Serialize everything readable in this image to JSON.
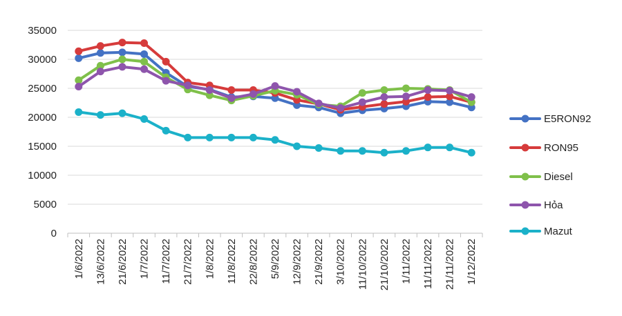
{
  "chart_data": {
    "type": "line",
    "title": "",
    "xlabel": "",
    "ylabel": "",
    "ylim": [
      0,
      35000
    ],
    "yticks": [
      0,
      5000,
      10000,
      15000,
      20000,
      25000,
      30000,
      35000
    ],
    "ytick_labels": [
      "0",
      "5000",
      "10000",
      "15000",
      "20000",
      "25000",
      "30000",
      "35000"
    ],
    "grid": "horizontal",
    "legend_position": "right",
    "categories": [
      "1/6/2022",
      "13/6/2022",
      "21/6/2022",
      "1/7/2022",
      "11/7/2022",
      "21/7/2022",
      "1/8/2022",
      "11/8/2022",
      "22/8/2022",
      "5/9/2022",
      "12/9/2022",
      "21/9/2022",
      "3/10/2022",
      "11/10/2022",
      "21/10/2022",
      "1/11/2022",
      "11/11/2022",
      "21/11/2022",
      "1/12/2022"
    ],
    "series": [
      {
        "name": "E5RON92",
        "color": "#4472C4",
        "values": [
          30200,
          31100,
          31200,
          30900,
          27700,
          25300,
          24800,
          23500,
          23600,
          23300,
          22100,
          21700,
          20700,
          21200,
          21500,
          21900,
          22700,
          22600,
          21700
        ]
      },
      {
        "name": "RON95",
        "color": "#D63B3B",
        "values": [
          31400,
          32300,
          32900,
          32800,
          29600,
          26000,
          25500,
          24700,
          24700,
          24200,
          23000,
          22300,
          21300,
          21800,
          22300,
          22700,
          23500,
          23600,
          22600
        ]
      },
      {
        "name": "Diesel",
        "color": "#7FC04A",
        "values": [
          26400,
          28900,
          30000,
          29600,
          26900,
          24800,
          23800,
          22900,
          23700,
          24600,
          23900,
          22200,
          21900,
          24200,
          24700,
          25000,
          24900,
          24700,
          22600
        ]
      },
      {
        "name": "Hỏa",
        "color": "#8E55AC",
        "values": [
          25300,
          27900,
          28700,
          28300,
          26300,
          25500,
          24700,
          23300,
          24000,
          25400,
          24400,
          22400,
          21600,
          22600,
          23500,
          23600,
          24700,
          24600,
          23500
        ]
      },
      {
        "name": "Mazut",
        "color": "#1BB1C9",
        "values": [
          20900,
          20400,
          20700,
          19700,
          17700,
          16500,
          16500,
          16500,
          16500,
          16100,
          15000,
          14700,
          14200,
          14200,
          13900,
          14200,
          14800,
          14800,
          13900
        ]
      }
    ]
  }
}
